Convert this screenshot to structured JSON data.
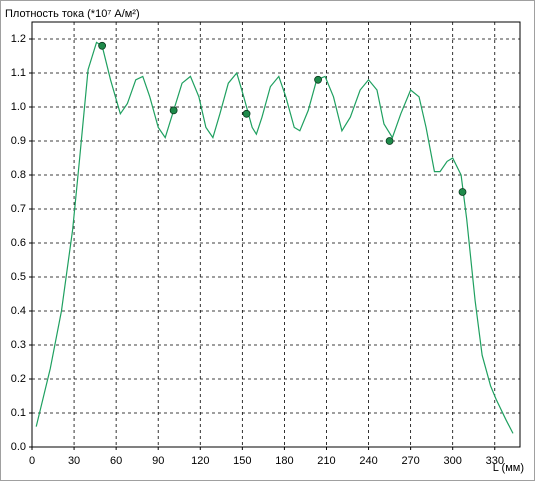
{
  "chart_data": {
    "type": "line",
    "title": "Плотность тока (*10⁷ А/м²)",
    "x_label": "L (мм)",
    "xlim": [
      0,
      348
    ],
    "ylim": [
      0,
      1.25
    ],
    "xticks": [
      0,
      30,
      60,
      90,
      120,
      150,
      180,
      210,
      240,
      270,
      300,
      330
    ],
    "yticks": [
      {
        "value": 0,
        "label": "0.0"
      },
      0.1,
      0.2,
      0.3,
      0.4,
      0.5,
      0.6,
      0.7,
      0.8,
      0.9,
      {
        "value": 1,
        "label": "1.0"
      },
      1.1,
      1.2
    ],
    "grid": true,
    "line": {
      "color": "#1fa060",
      "x": [
        3,
        13,
        21,
        29,
        34,
        40,
        46,
        50,
        56,
        63,
        68,
        74,
        79,
        84,
        90,
        95,
        101,
        107,
        113,
        119,
        124,
        129,
        134,
        140,
        146,
        151,
        157,
        160,
        164,
        170,
        176,
        181,
        187,
        191,
        197,
        203,
        209,
        215,
        221,
        227,
        234,
        240,
        246,
        251,
        257,
        263,
        270,
        276,
        281,
        287,
        291,
        296,
        300,
        306,
        310,
        316,
        321,
        327,
        331,
        338,
        343
      ],
      "values": [
        0.06,
        0.23,
        0.4,
        0.64,
        0.85,
        1.11,
        1.19,
        1.18,
        1.08,
        0.98,
        1.01,
        1.08,
        1.09,
        1.03,
        0.94,
        0.91,
        0.99,
        1.07,
        1.09,
        1.03,
        0.94,
        0.91,
        0.98,
        1.07,
        1.1,
        1.03,
        0.94,
        0.92,
        0.97,
        1.06,
        1.09,
        1.03,
        0.94,
        0.93,
        0.99,
        1.08,
        1.09,
        1.03,
        0.93,
        0.97,
        1.05,
        1.08,
        1.05,
        0.95,
        0.91,
        0.98,
        1.05,
        1.03,
        0.94,
        0.81,
        0.81,
        0.84,
        0.85,
        0.8,
        0.67,
        0.43,
        0.27,
        0.18,
        0.14,
        0.08,
        0.04
      ]
    },
    "markers": {
      "color": "#1e8a4a",
      "x": [
        50,
        101,
        153,
        204,
        255,
        307
      ],
      "values": [
        1.18,
        0.99,
        0.98,
        1.08,
        0.9,
        0.75
      ]
    }
  }
}
